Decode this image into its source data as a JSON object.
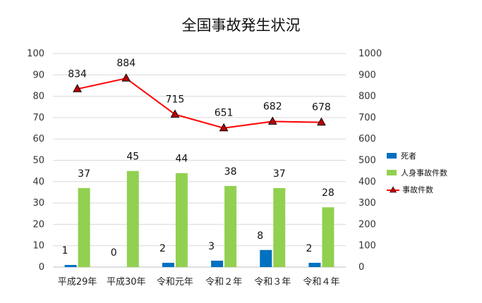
{
  "chart_data": {
    "type": "bar+line",
    "title": "全国事故発生状況",
    "categories": [
      "平成29年",
      "平成30年",
      "令和元年",
      "令和２年",
      "令和３年",
      "令和４年"
    ],
    "series": [
      {
        "name": "死者",
        "type": "bar",
        "axis": "left",
        "values": [
          1,
          0,
          2,
          3,
          8,
          2
        ],
        "color": "#0070c0"
      },
      {
        "name": "人身事故件数",
        "type": "bar",
        "axis": "left",
        "values": [
          37,
          45,
          44,
          38,
          37,
          28
        ],
        "color": "#92d050"
      },
      {
        "name": "事故件数",
        "type": "line",
        "axis": "right",
        "values": [
          834,
          884,
          715,
          651,
          682,
          678
        ],
        "color": "#ff0000",
        "marker": "triangle",
        "marker_color": "#c00000"
      }
    ],
    "left_axis": {
      "ylim": [
        0,
        100
      ],
      "ticks": [
        "0",
        "10",
        "20",
        "30",
        "40",
        "50",
        "60",
        "70",
        "80",
        "90",
        "100"
      ]
    },
    "right_axis": {
      "ylim": [
        0,
        1000
      ],
      "ticks": [
        "0",
        "100",
        "200",
        "300",
        "400",
        "500",
        "600",
        "700",
        "800",
        "900",
        "1000"
      ]
    },
    "grid": true,
    "legend_position": "right"
  }
}
